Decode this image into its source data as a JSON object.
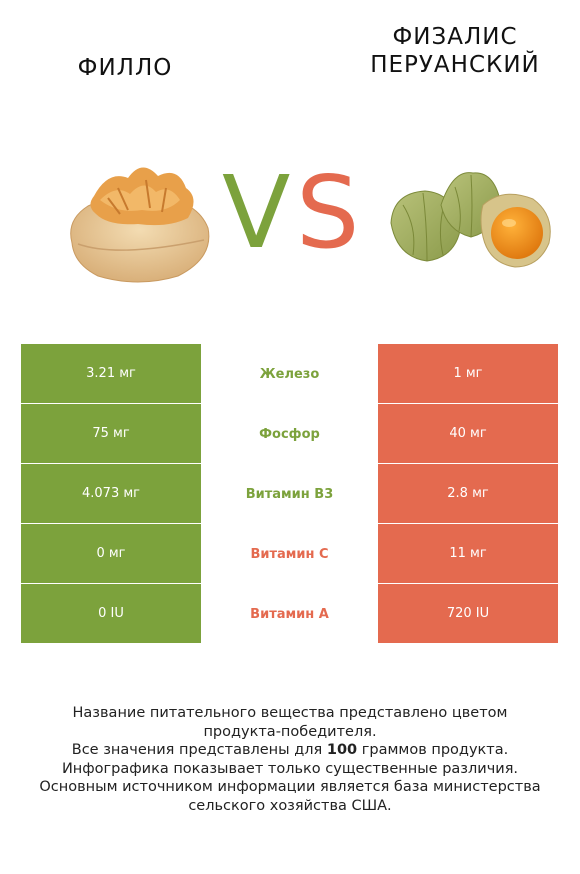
{
  "title_left": "ФИЛЛО",
  "title_right": "ФИЗАЛИС ПЕРУАНСКИЙ",
  "vs": {
    "v": "V",
    "s": "S"
  },
  "colors": {
    "green": "#7ca23c",
    "red": "#e46a4f"
  },
  "rows": [
    {
      "nutrient": "Железо",
      "left": "3.21 мг",
      "right": "1 мг",
      "winner": "left"
    },
    {
      "nutrient": "Фосфор",
      "left": "75 мг",
      "right": "40 мг",
      "winner": "left"
    },
    {
      "nutrient": "Витамин B3",
      "left": "4.073 мг",
      "right": "2.8 мг",
      "winner": "left"
    },
    {
      "nutrient": "Витамин C",
      "left": "0 мг",
      "right": "11 мг",
      "winner": "right"
    },
    {
      "nutrient": "Витамин A",
      "left": "0 IU",
      "right": "720 IU",
      "winner": "right"
    }
  ],
  "footer": {
    "line1": "Название питательного вещества представлено цветом",
    "line2": "продукта-победителя.",
    "line3_before": "Все значения представлены для ",
    "line3_bold": "100",
    "line3_after": " граммов продукта.",
    "line4": "Инфографика показывает только существенные различия.",
    "line5": "Основным источником информации является база министерства",
    "line6": "сельского хозяйства США."
  }
}
